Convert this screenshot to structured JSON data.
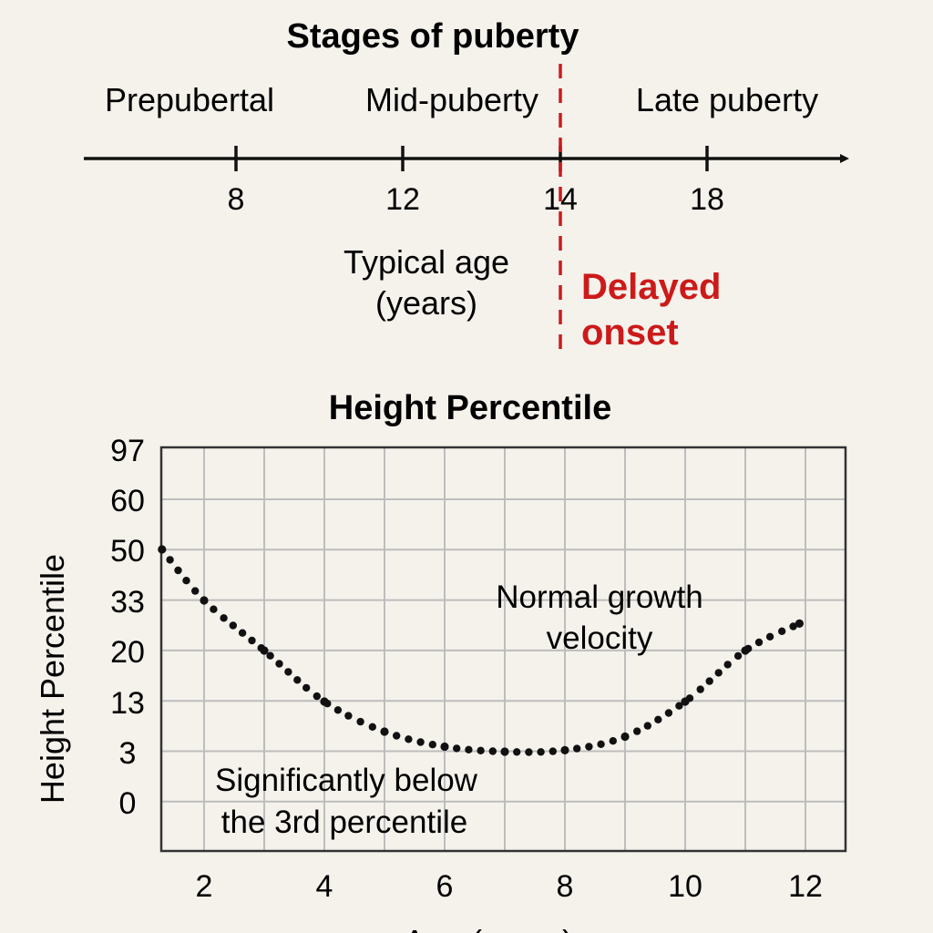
{
  "chart_data": [
    {
      "type": "timeline",
      "title": "Stages of puberty",
      "stages": [
        "Prepubertal",
        "Mid-puberty",
        "Late puberty"
      ],
      "ticks": [
        8,
        12,
        14,
        18
      ],
      "axis_label_line1": "Typical age",
      "axis_label_line2": "(years)",
      "marker": {
        "value": 14,
        "label_line1": "Delayed",
        "label_line2": "onset",
        "color": "#cc1a1a"
      }
    },
    {
      "type": "scatter",
      "title": "Height Percentile",
      "ylabel": "Height Percentile",
      "xlabel": "Age (years)",
      "xticks": [
        2,
        4,
        6,
        8,
        10,
        12
      ],
      "yticks": [
        "0",
        "3",
        "13",
        "20",
        "33",
        "50",
        "60",
        "97"
      ],
      "xlim": [
        1.3,
        13.3
      ],
      "grid": true,
      "series": [
        {
          "marker": "dot",
          "color": "#111111",
          "x": [
            1.3,
            2.0,
            3.0,
            4.0,
            5.0,
            6.0,
            7.0,
            8.0,
            9.0,
            10.0,
            11.0,
            11.9
          ],
          "y": [
            "50",
            "33",
            "20",
            "13",
            "7",
            "4",
            "3",
            "3.3",
            "6",
            "13",
            "20",
            "27"
          ]
        }
      ],
      "annotations": [
        {
          "line1": "Normal growth",
          "line2": "velocity"
        },
        {
          "line1": "Significantly below",
          "line2": "the 3rd percentile"
        }
      ]
    }
  ]
}
